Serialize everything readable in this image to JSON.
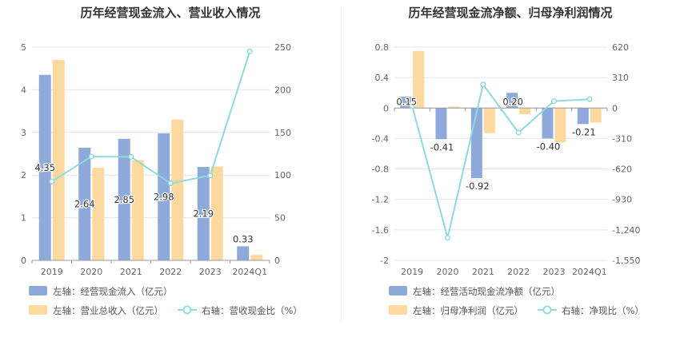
{
  "chart_data": [
    {
      "type": "bar",
      "title": "历年经营现金流入、营业收入情况",
      "categories": [
        "2019",
        "2020",
        "2021",
        "2022",
        "2023",
        "2024Q1"
      ],
      "left_axis": {
        "ticks": [
          "0",
          "1",
          "2",
          "3",
          "4",
          "5"
        ],
        "ylim": [
          0,
          5
        ]
      },
      "right_axis": {
        "ticks": [
          "0",
          "50",
          "100",
          "150",
          "200",
          "250"
        ],
        "ylim": [
          0,
          250
        ]
      },
      "series": [
        {
          "name": "左轴：经营现金流入（亿元）",
          "type": "bar",
          "axis": "left",
          "color": "#8eaadb",
          "values": [
            4.35,
            2.64,
            2.85,
            2.98,
            2.19,
            0.33
          ],
          "labels": [
            "4.35",
            "2.64",
            "2.85",
            "2.98",
            "2.19",
            "0.33"
          ]
        },
        {
          "name": "左轴：营业总收入（亿元）",
          "type": "bar",
          "axis": "left",
          "color": "#fdd9a0",
          "values": [
            4.7,
            2.17,
            2.35,
            3.3,
            2.2,
            0.13
          ]
        },
        {
          "name": "右轴：营收现金比（%）",
          "type": "line",
          "axis": "right",
          "color": "#8fdada",
          "values": [
            92.5,
            121.7,
            121.3,
            90.3,
            99.5,
            245.0
          ]
        }
      ]
    },
    {
      "type": "bar",
      "title": "历年经营现金流净额、归母净利润情况",
      "categories": [
        "2019",
        "2020",
        "2021",
        "2022",
        "2023",
        "2024Q1"
      ],
      "left_axis": {
        "ticks": [
          "0.8",
          "0.4",
          "0",
          "-0.4",
          "-0.8",
          "-1.2",
          "-1.6",
          "-2"
        ],
        "ylim": [
          -2,
          0.8
        ]
      },
      "right_axis": {
        "ticks": [
          "620",
          "310",
          "0",
          "-310",
          "-620",
          "-930",
          "-1,240",
          "-1,550"
        ],
        "ylim": [
          -1550,
          620
        ]
      },
      "series": [
        {
          "name": "左轴：经营活动现金流净额（亿元）",
          "type": "bar",
          "axis": "left",
          "color": "#8eaadb",
          "values": [
            0.15,
            -0.41,
            -0.92,
            0.2,
            -0.4,
            -0.21
          ],
          "labels": [
            "0.15",
            "-0.41",
            "-0.92",
            "0.20",
            "-0.40",
            "-0.21"
          ]
        },
        {
          "name": "左轴：归母净利润（亿元）",
          "type": "bar",
          "axis": "left",
          "color": "#fdd9a0",
          "values": [
            0.75,
            0.02,
            -0.33,
            -0.08,
            -0.45,
            -0.19
          ]
        },
        {
          "name": "右轴：净现比（%）",
          "type": "line",
          "axis": "right",
          "color": "#8fdada",
          "values": [
            20,
            -1320,
            240,
            -250,
            70,
            90
          ]
        }
      ]
    }
  ]
}
